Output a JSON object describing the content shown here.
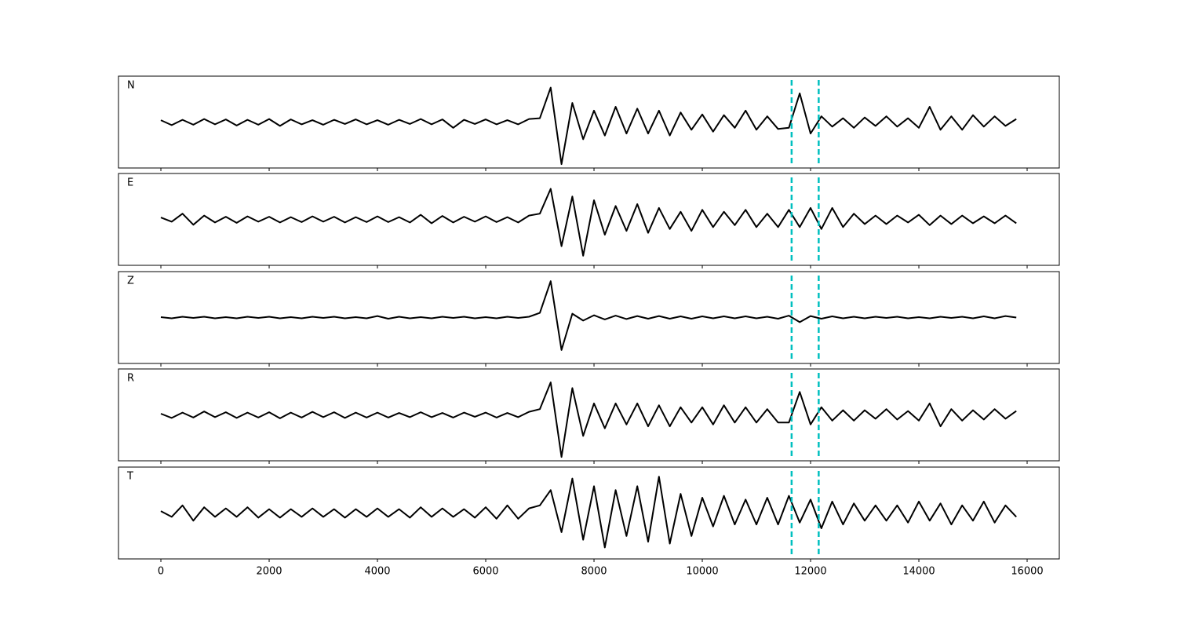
{
  "chart_data": {
    "type": "line",
    "layout": "stacked",
    "x": [
      0,
      200,
      400,
      600,
      800,
      1000,
      1200,
      1400,
      1600,
      1800,
      2000,
      2200,
      2400,
      2600,
      2800,
      3000,
      3200,
      3400,
      3600,
      3800,
      4000,
      4200,
      4400,
      4600,
      4800,
      5000,
      5200,
      5400,
      5600,
      5800,
      6000,
      6200,
      6400,
      6600,
      6800,
      7000,
      7200,
      7400,
      7600,
      7800,
      8000,
      8200,
      8400,
      8600,
      8800,
      9000,
      9200,
      9400,
      9600,
      9800,
      10000,
      10200,
      10400,
      10600,
      10800,
      11000,
      11200,
      11400,
      11600,
      11800,
      12000,
      12200,
      12400,
      12600,
      12800,
      13000,
      13200,
      13400,
      13600,
      13800,
      14000,
      14200,
      14400,
      14600,
      14800,
      15000,
      15200,
      15400,
      15600,
      15800
    ],
    "series": [
      {
        "name": "N",
        "color": "#000000",
        "values": [
          0.05,
          -0.08,
          0.06,
          -0.07,
          0.08,
          -0.06,
          0.07,
          -0.09,
          0.06,
          -0.07,
          0.08,
          -0.1,
          0.07,
          -0.06,
          0.05,
          -0.07,
          0.06,
          -0.05,
          0.07,
          -0.06,
          0.05,
          -0.07,
          0.06,
          -0.05,
          0.08,
          -0.06,
          0.07,
          -0.15,
          0.06,
          -0.05,
          0.07,
          -0.06,
          0.05,
          -0.06,
          0.08,
          0.1,
          0.9,
          -1.1,
          0.5,
          -0.45,
          0.3,
          -0.35,
          0.4,
          -0.3,
          0.35,
          -0.3,
          0.3,
          -0.35,
          0.25,
          -0.2,
          0.2,
          -0.25,
          0.18,
          -0.15,
          0.3,
          -0.2,
          0.15,
          -0.18,
          -0.15,
          0.75,
          -0.3,
          0.15,
          -0.12,
          0.1,
          -0.15,
          0.12,
          -0.1,
          0.15,
          -0.12,
          0.1,
          -0.15,
          0.4,
          -0.2,
          0.15,
          -0.2,
          0.18,
          -0.12,
          0.15,
          -0.1,
          0.08
        ]
      },
      {
        "name": "E",
        "color": "#000000",
        "values": [
          0.05,
          -0.06,
          0.15,
          -0.14,
          0.1,
          -0.08,
          0.07,
          -0.09,
          0.08,
          -0.06,
          0.07,
          -0.08,
          0.06,
          -0.07,
          0.08,
          -0.06,
          0.07,
          -0.08,
          0.06,
          -0.07,
          0.08,
          -0.07,
          0.06,
          -0.08,
          0.12,
          -0.1,
          0.09,
          -0.08,
          0.07,
          -0.06,
          0.08,
          -0.07,
          0.06,
          -0.08,
          0.1,
          0.15,
          0.8,
          -0.7,
          0.6,
          -0.95,
          0.5,
          -0.4,
          0.35,
          -0.3,
          0.4,
          -0.35,
          0.3,
          -0.25,
          0.2,
          -0.3,
          0.25,
          -0.2,
          0.2,
          -0.15,
          0.25,
          -0.2,
          0.15,
          -0.2,
          0.25,
          -0.2,
          0.3,
          -0.25,
          0.3,
          -0.2,
          0.15,
          -0.12,
          0.1,
          -0.12,
          0.1,
          -0.08,
          0.12,
          -0.15,
          0.1,
          -0.12,
          0.1,
          -0.1,
          0.08,
          -0.1,
          0.1,
          -0.1
        ]
      },
      {
        "name": "Z",
        "color": "#000000",
        "values": [
          0.01,
          -0.02,
          0.02,
          -0.01,
          0.02,
          -0.02,
          0.01,
          -0.02,
          0.02,
          -0.01,
          0.02,
          -0.02,
          0.01,
          -0.02,
          0.02,
          -0.01,
          0.02,
          -0.02,
          0.01,
          -0.02,
          0.04,
          -0.03,
          0.02,
          -0.02,
          0.01,
          -0.02,
          0.02,
          -0.01,
          0.02,
          -0.02,
          0.01,
          -0.02,
          0.02,
          -0.01,
          0.02,
          0.12,
          0.95,
          -0.85,
          0.1,
          -0.08,
          0.06,
          -0.05,
          0.05,
          -0.04,
          0.04,
          -0.03,
          0.04,
          -0.03,
          0.03,
          -0.03,
          0.03,
          -0.02,
          0.03,
          -0.02,
          0.03,
          -0.02,
          0.02,
          -0.03,
          0.05,
          -0.12,
          0.04,
          -0.03,
          0.03,
          -0.02,
          0.02,
          -0.02,
          0.02,
          -0.01,
          0.02,
          -0.02,
          0.01,
          -0.02,
          0.02,
          -0.01,
          0.02,
          -0.02,
          0.03,
          -0.02,
          0.04,
          0.0
        ]
      },
      {
        "name": "R",
        "color": "#000000",
        "values": [
          0.03,
          -0.08,
          0.06,
          -0.07,
          0.09,
          -0.06,
          0.07,
          -0.08,
          0.06,
          -0.07,
          0.07,
          -0.09,
          0.06,
          -0.07,
          0.08,
          -0.06,
          0.07,
          -0.08,
          0.06,
          -0.07,
          0.06,
          -0.07,
          0.05,
          -0.06,
          0.07,
          -0.06,
          0.05,
          -0.07,
          0.06,
          -0.05,
          0.06,
          -0.07,
          0.05,
          -0.06,
          0.08,
          0.15,
          0.85,
          -1.1,
          0.7,
          -0.55,
          0.3,
          -0.35,
          0.3,
          -0.25,
          0.3,
          -0.3,
          0.25,
          -0.3,
          0.2,
          -0.2,
          0.2,
          -0.25,
          0.25,
          -0.2,
          0.2,
          -0.2,
          0.15,
          -0.2,
          -0.2,
          0.6,
          -0.25,
          0.2,
          -0.15,
          0.12,
          -0.15,
          0.12,
          -0.1,
          0.15,
          -0.12,
          0.1,
          -0.15,
          0.3,
          -0.3,
          0.15,
          -0.15,
          0.12,
          -0.12,
          0.15,
          -0.1,
          0.1
        ]
      },
      {
        "name": "T",
        "color": "#000000",
        "values": [
          0.05,
          -0.1,
          0.2,
          -0.2,
          0.15,
          -0.1,
          0.12,
          -0.1,
          0.15,
          -0.12,
          0.1,
          -0.12,
          0.1,
          -0.1,
          0.12,
          -0.1,
          0.1,
          -0.12,
          0.1,
          -0.1,
          0.12,
          -0.1,
          0.1,
          -0.12,
          0.15,
          -0.1,
          0.12,
          -0.1,
          0.1,
          -0.12,
          0.15,
          -0.15,
          0.2,
          -0.15,
          0.12,
          0.2,
          0.6,
          -0.5,
          0.9,
          -0.7,
          0.7,
          -0.9,
          0.6,
          -0.6,
          0.7,
          -0.75,
          0.95,
          -0.8,
          0.5,
          -0.6,
          0.4,
          -0.35,
          0.45,
          -0.3,
          0.35,
          -0.3,
          0.4,
          -0.3,
          0.45,
          -0.25,
          0.35,
          -0.4,
          0.3,
          -0.3,
          0.25,
          -0.2,
          0.2,
          -0.2,
          0.2,
          -0.25,
          0.3,
          -0.2,
          0.25,
          -0.3,
          0.2,
          -0.2,
          0.3,
          -0.25,
          0.2,
          -0.1
        ]
      }
    ],
    "xlim": [
      -783,
      16594
    ],
    "xticks": [
      0,
      2000,
      4000,
      6000,
      8000,
      10000,
      12000,
      14000,
      16000
    ],
    "ylim": [
      -1.2,
      1.2
    ],
    "vlines": {
      "x": [
        11650,
        12150
      ],
      "color": "#00bfbf",
      "style": "dashed"
    }
  }
}
